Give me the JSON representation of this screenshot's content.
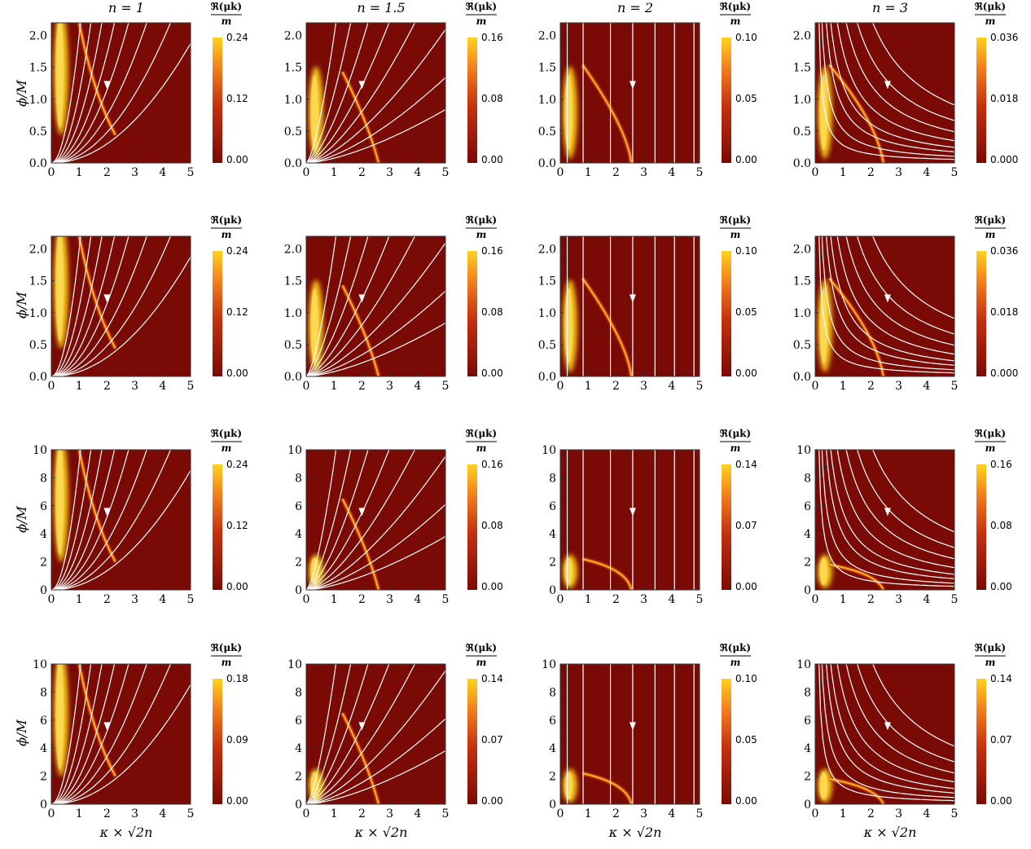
{
  "column_titles": [
    "n = 1",
    "n = 1.5",
    "n = 2",
    "n = 3"
  ],
  "x_axis_label": "κ × √2n",
  "y_axis_label": "ϕ/M",
  "colorbar_label": {
    "numerator": "ℜ(μk)",
    "denominator": "m"
  },
  "colors": {
    "low": "#7a0a05",
    "mid": "#d9421a",
    "high": "#ffd21f",
    "streamline": "#ffffff"
  },
  "chart_data": [
    {
      "type": "heatmap",
      "row": 1,
      "n": 1,
      "xlim": [
        0,
        5
      ],
      "ylim": [
        0,
        2.2
      ],
      "xticks": [
        0,
        1,
        2,
        3,
        4,
        5
      ],
      "yticks": [
        "0.0",
        "0.5",
        "1.0",
        "1.5",
        "2.0"
      ],
      "colorbar_ticks": [
        "0.24",
        "0.12",
        "0.00"
      ],
      "colorbar_max": 0.24
    },
    {
      "type": "heatmap",
      "row": 1,
      "n": 1.5,
      "xlim": [
        0,
        5
      ],
      "ylim": [
        0,
        2.2
      ],
      "xticks": [
        0,
        1,
        2,
        3,
        4,
        5
      ],
      "yticks": [
        "0.0",
        "0.5",
        "1.0",
        "1.5",
        "2.0"
      ],
      "colorbar_ticks": [
        "0.16",
        "0.08",
        "0.00"
      ],
      "colorbar_max": 0.16
    },
    {
      "type": "heatmap",
      "row": 1,
      "n": 2,
      "xlim": [
        0,
        5
      ],
      "ylim": [
        0,
        2.2
      ],
      "xticks": [
        0,
        1,
        2,
        3,
        4,
        5
      ],
      "yticks": [
        "0.0",
        "0.5",
        "1.0",
        "1.5",
        "2.0"
      ],
      "colorbar_ticks": [
        "0.10",
        "0.05",
        "0.00"
      ],
      "colorbar_max": 0.1
    },
    {
      "type": "heatmap",
      "row": 1,
      "n": 3,
      "xlim": [
        0,
        5
      ],
      "ylim": [
        0,
        2.2
      ],
      "xticks": [
        0,
        1,
        2,
        3,
        4,
        5
      ],
      "yticks": [
        "0.0",
        "0.5",
        "1.0",
        "1.5",
        "2.0"
      ],
      "colorbar_ticks": [
        "0.036",
        "0.018",
        "0.000"
      ],
      "colorbar_max": 0.036
    },
    {
      "type": "heatmap",
      "row": 2,
      "n": 1,
      "xlim": [
        0,
        5
      ],
      "ylim": [
        0,
        2.2
      ],
      "xticks": [
        0,
        1,
        2,
        3,
        4,
        5
      ],
      "yticks": [
        "0.0",
        "0.5",
        "1.0",
        "1.5",
        "2.0"
      ],
      "colorbar_ticks": [
        "0.24",
        "0.12",
        "0.00"
      ],
      "colorbar_max": 0.24
    },
    {
      "type": "heatmap",
      "row": 2,
      "n": 1.5,
      "xlim": [
        0,
        5
      ],
      "ylim": [
        0,
        2.2
      ],
      "xticks": [
        0,
        1,
        2,
        3,
        4,
        5
      ],
      "yticks": [
        "0.0",
        "0.5",
        "1.0",
        "1.5",
        "2.0"
      ],
      "colorbar_ticks": [
        "0.16",
        "0.08",
        "0.00"
      ],
      "colorbar_max": 0.16
    },
    {
      "type": "heatmap",
      "row": 2,
      "n": 2,
      "xlim": [
        0,
        5
      ],
      "ylim": [
        0,
        2.2
      ],
      "xticks": [
        0,
        1,
        2,
        3,
        4,
        5
      ],
      "yticks": [
        "0.0",
        "0.5",
        "1.0",
        "1.5",
        "2.0"
      ],
      "colorbar_ticks": [
        "0.10",
        "0.05",
        "0.00"
      ],
      "colorbar_max": 0.1
    },
    {
      "type": "heatmap",
      "row": 2,
      "n": 3,
      "xlim": [
        0,
        5
      ],
      "ylim": [
        0,
        2.2
      ],
      "xticks": [
        0,
        1,
        2,
        3,
        4,
        5
      ],
      "yticks": [
        "0.0",
        "0.5",
        "1.0",
        "1.5",
        "2.0"
      ],
      "colorbar_ticks": [
        "0.036",
        "0.018",
        "0.000"
      ],
      "colorbar_max": 0.036
    },
    {
      "type": "heatmap",
      "row": 3,
      "n": 1,
      "xlim": [
        0,
        5
      ],
      "ylim": [
        0,
        10
      ],
      "xticks": [
        0,
        1,
        2,
        3,
        4,
        5
      ],
      "yticks": [
        "0",
        "2",
        "4",
        "6",
        "8",
        "10"
      ],
      "colorbar_ticks": [
        "0.24",
        "0.12",
        "0.00"
      ],
      "colorbar_max": 0.24
    },
    {
      "type": "heatmap",
      "row": 3,
      "n": 1.5,
      "xlim": [
        0,
        5
      ],
      "ylim": [
        0,
        10
      ],
      "xticks": [
        0,
        1,
        2,
        3,
        4,
        5
      ],
      "yticks": [
        "0",
        "2",
        "4",
        "6",
        "8",
        "10"
      ],
      "colorbar_ticks": [
        "0.16",
        "0.08",
        "0.00"
      ],
      "colorbar_max": 0.16
    },
    {
      "type": "heatmap",
      "row": 3,
      "n": 2,
      "xlim": [
        0,
        5
      ],
      "ylim": [
        0,
        10
      ],
      "xticks": [
        0,
        1,
        2,
        3,
        4,
        5
      ],
      "yticks": [
        "0",
        "2",
        "4",
        "6",
        "8",
        "10"
      ],
      "colorbar_ticks": [
        "0.14",
        "0.07",
        "0.00"
      ],
      "colorbar_max": 0.14
    },
    {
      "type": "heatmap",
      "row": 3,
      "n": 3,
      "xlim": [
        0,
        5
      ],
      "ylim": [
        0,
        10
      ],
      "xticks": [
        0,
        1,
        2,
        3,
        4,
        5
      ],
      "yticks": [
        "0",
        "2",
        "4",
        "6",
        "8",
        "10"
      ],
      "colorbar_ticks": [
        "0.16",
        "0.08",
        "0.00"
      ],
      "colorbar_max": 0.16
    },
    {
      "type": "heatmap",
      "row": 4,
      "n": 1,
      "xlim": [
        0,
        5
      ],
      "ylim": [
        0,
        10
      ],
      "xticks": [
        0,
        1,
        2,
        3,
        4,
        5
      ],
      "yticks": [
        "0",
        "2",
        "4",
        "6",
        "8",
        "10"
      ],
      "colorbar_ticks": [
        "0.18",
        "0.09",
        "0.00"
      ],
      "colorbar_max": 0.18
    },
    {
      "type": "heatmap",
      "row": 4,
      "n": 1.5,
      "xlim": [
        0,
        5
      ],
      "ylim": [
        0,
        10
      ],
      "xticks": [
        0,
        1,
        2,
        3,
        4,
        5
      ],
      "yticks": [
        "0",
        "2",
        "4",
        "6",
        "8",
        "10"
      ],
      "colorbar_ticks": [
        "0.14",
        "0.07",
        "0.00"
      ],
      "colorbar_max": 0.14
    },
    {
      "type": "heatmap",
      "row": 4,
      "n": 2,
      "xlim": [
        0,
        5
      ],
      "ylim": [
        0,
        10
      ],
      "xticks": [
        0,
        1,
        2,
        3,
        4,
        5
      ],
      "yticks": [
        "0",
        "2",
        "4",
        "6",
        "8",
        "10"
      ],
      "colorbar_ticks": [
        "0.10",
        "0.05",
        "0.00"
      ],
      "colorbar_max": 0.1
    },
    {
      "type": "heatmap",
      "row": 4,
      "n": 3,
      "xlim": [
        0,
        5
      ],
      "ylim": [
        0,
        10
      ],
      "xticks": [
        0,
        1,
        2,
        3,
        4,
        5
      ],
      "yticks": [
        "0",
        "2",
        "4",
        "6",
        "8",
        "10"
      ],
      "colorbar_ticks": [
        "0.14",
        "0.07",
        "0.00"
      ],
      "colorbar_max": 0.14
    }
  ]
}
